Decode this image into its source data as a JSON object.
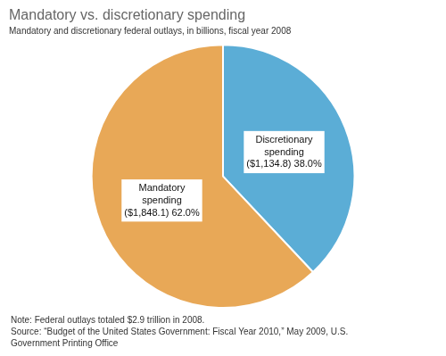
{
  "chart_data": {
    "type": "pie",
    "title": "Mandatory vs. discretionary spending",
    "subtitle": "Mandatory and discretionary federal outlays, in billions, fiscal year 2008",
    "values": [
      38.0,
      62.0
    ],
    "value_labels": [
      "Discretionary\nspending\n($1,134.8) 38.0%",
      "Mandatory\nspending\n($1,848.1) 62.0%"
    ],
    "data_labels": true,
    "colors": [
      "#5badd6",
      "#e8a857"
    ],
    "legend": false,
    "annotations": [
      "Note: Federal outlays totaled $2.9 trillion in 2008.",
      "Source: “Budget of the United States Government: Fiscal Year 2010,” May 2009, U.S.",
      "Government Printing Office"
    ]
  }
}
